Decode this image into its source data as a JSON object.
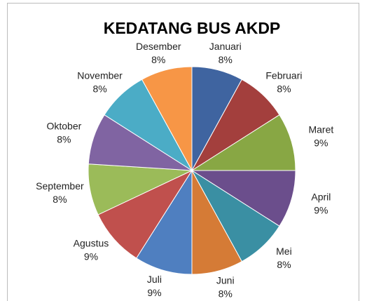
{
  "chart_data": {
    "type": "pie",
    "title": "KEDATANG BUS AKDP",
    "categories": [
      "Januari",
      "Februari",
      "Maret",
      "April",
      "Mei",
      "Juni",
      "Juli",
      "Agustus",
      "September",
      "Oktober",
      "November",
      "Desember"
    ],
    "values": [
      8,
      8,
      9,
      9,
      8,
      8,
      9,
      9,
      8,
      8,
      8,
      8
    ],
    "value_labels": [
      "8%",
      "8%",
      "9%",
      "9%",
      "8%",
      "8%",
      "9%",
      "9%",
      "8%",
      "8%",
      "8%",
      "8%"
    ],
    "colors": [
      "#3f64a0",
      "#a33f3d",
      "#88a744",
      "#6b4e8c",
      "#3a8fa3",
      "#d57b36",
      "#4f7fc0",
      "#c0504d",
      "#9bbb59",
      "#8064a2",
      "#4bacc6",
      "#f79646"
    ]
  }
}
